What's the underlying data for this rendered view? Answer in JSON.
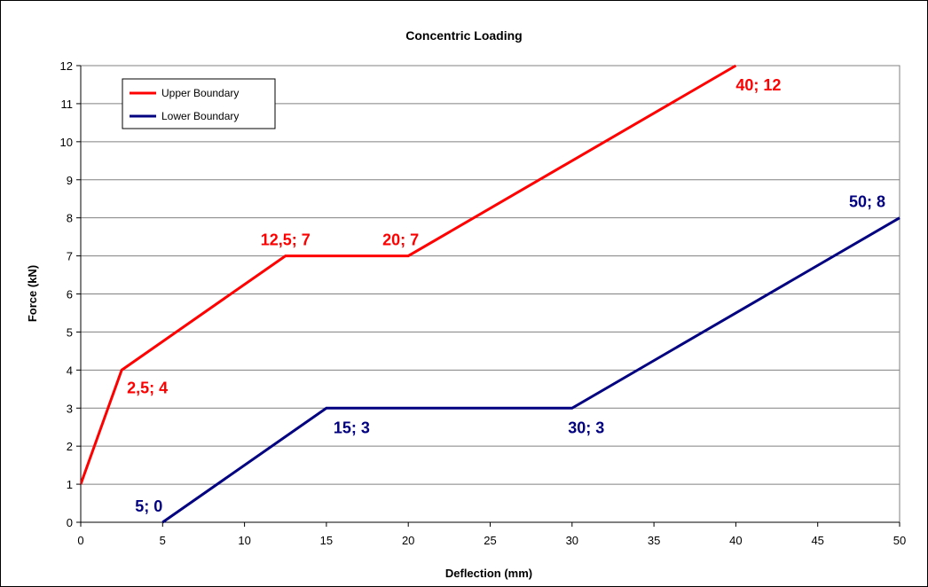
{
  "chart_data": {
    "type": "line",
    "title": "Concentric Loading",
    "xlabel": "Deflection (mm)",
    "ylabel": "Force (kN)",
    "xlim": [
      0,
      50
    ],
    "ylim": [
      0,
      12
    ],
    "xticks": [
      0,
      5,
      10,
      15,
      20,
      25,
      30,
      35,
      40,
      45,
      50
    ],
    "yticks": [
      0,
      1,
      2,
      3,
      4,
      5,
      6,
      7,
      8,
      9,
      10,
      11,
      12
    ],
    "grid": "horizontal",
    "legend_position": "top-left",
    "series": [
      {
        "name": "Upper Boundary",
        "color": "#ff0000",
        "x": [
          0,
          2.5,
          12.5,
          20,
          40
        ],
        "y": [
          1,
          4,
          7,
          7,
          12
        ]
      },
      {
        "name": "Lower Boundary",
        "color": "#000080",
        "x": [
          5,
          15,
          30,
          50
        ],
        "y": [
          0,
          3,
          3,
          8
        ]
      }
    ],
    "annotations": [
      {
        "text": "2,5; 4",
        "series": 0,
        "x": 2.5,
        "y": 4,
        "placement": "below-right"
      },
      {
        "text": "12,5; 7",
        "series": 0,
        "x": 12.5,
        "y": 7,
        "placement": "above"
      },
      {
        "text": "20; 7",
        "series": 0,
        "x": 20,
        "y": 7,
        "placement": "above-left"
      },
      {
        "text": "40; 12",
        "series": 0,
        "x": 40,
        "y": 12,
        "placement": "below-right"
      },
      {
        "text": "5; 0",
        "series": 1,
        "x": 5,
        "y": 0,
        "placement": "above-left"
      },
      {
        "text": "15; 3",
        "series": 1,
        "x": 15,
        "y": 3,
        "placement": "below-right"
      },
      {
        "text": "30; 3",
        "series": 1,
        "x": 30,
        "y": 3,
        "placement": "below"
      },
      {
        "text": "50; 8",
        "series": 1,
        "x": 50,
        "y": 8,
        "placement": "above-left"
      }
    ]
  }
}
